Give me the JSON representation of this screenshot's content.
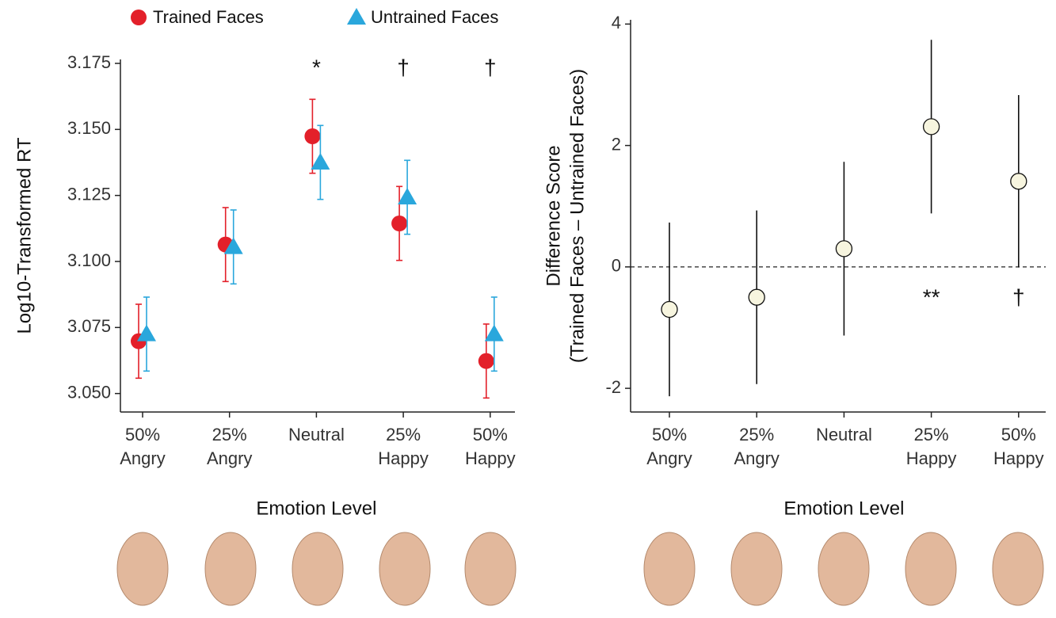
{
  "chart_data": [
    {
      "type": "point",
      "y_label": "Log10-Transformed RT",
      "x_label": "Emotion Level",
      "categories": [
        "50% Angry",
        "25% Angry",
        "Neutral",
        "25% Happy",
        "50% Happy"
      ],
      "series": [
        {
          "name": "Trained Faces",
          "color": "#e3202a",
          "marker": "circle",
          "values": [
            3.0698,
            3.1064,
            3.1474,
            3.1144,
            3.0623
          ],
          "errors": [
            0.014,
            0.014,
            0.014,
            0.014,
            0.014
          ]
        },
        {
          "name": "Untrained Faces",
          "color": "#2aa7dc",
          "marker": "triangle",
          "values": [
            3.0725,
            3.1055,
            3.1375,
            3.1243,
            3.0725
          ],
          "errors": [
            0.014,
            0.014,
            0.014,
            0.014,
            0.014
          ]
        }
      ],
      "ylim": [
        3.043,
        3.1765
      ],
      "yticks": [
        {
          "value": 3.05,
          "label": "3.050"
        },
        3.075,
        {
          "value": 3.1,
          "label": "3.100"
        },
        3.125,
        {
          "value": 3.15,
          "label": "3.150"
        },
        3.175
      ],
      "annotations": [
        {
          "category": "Neutral",
          "text": "*"
        },
        {
          "category": "25% Happy",
          "text": "†"
        },
        {
          "category": "50% Happy",
          "text": "†"
        }
      ],
      "legend": "top"
    },
    {
      "type": "point",
      "y_label": [
        "Difference Score",
        "(Trained Faces – Untrained Faces)"
      ],
      "x_label": "Emotion Level",
      "categories": [
        "50% Angry",
        "25% Angry",
        "Neutral",
        "25% Happy",
        "50% Happy"
      ],
      "series": [
        {
          "color": "#f7f5df",
          "edge_color": "#111",
          "marker": "circle",
          "values": [
            -0.7,
            -0.5,
            0.3,
            2.31,
            1.41
          ],
          "errors": [
            1.43,
            1.43,
            1.43,
            1.43,
            1.42
          ]
        }
      ],
      "ylim": [
        -2.39,
        4.07
      ],
      "yticks": [
        -2,
        0,
        2,
        4
      ],
      "hline": 0,
      "annotations": [
        {
          "category": "25% Happy",
          "text": "**"
        },
        {
          "category": "50% Happy",
          "text": "†"
        }
      ]
    }
  ]
}
